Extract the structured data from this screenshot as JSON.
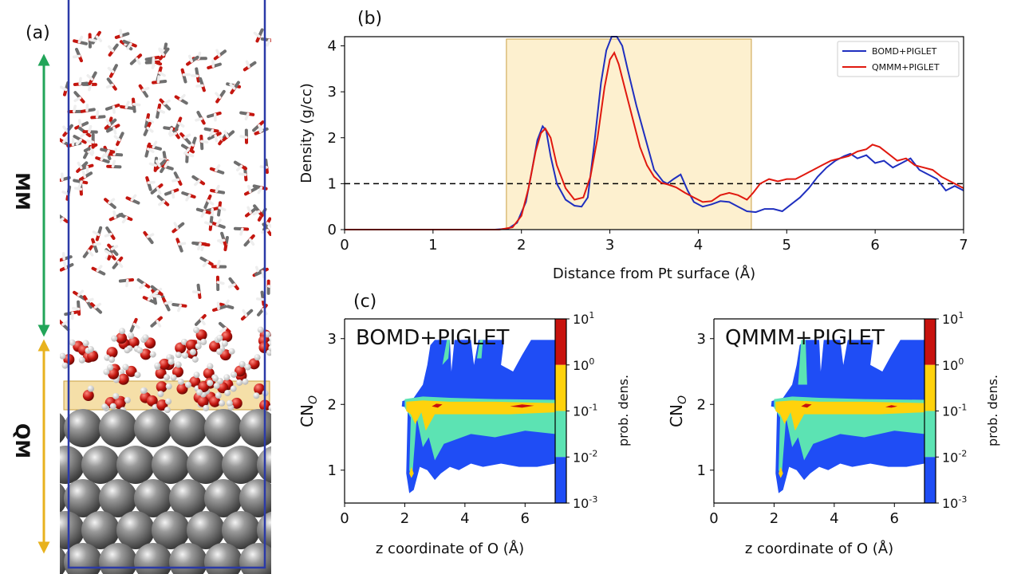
{
  "panels": {
    "a": "(a)",
    "b": "(b)",
    "c": "(c)"
  },
  "simulation": {
    "mm_label": "MM",
    "qm_label": "QM",
    "colors": {
      "mm_arrow": "#22a559",
      "qm_arrow": "#e8b21e",
      "box": "#2b3aa8",
      "highlight": "#f5dfa8",
      "oxygen": "#c4160f",
      "hydrogen": "#eeeeee",
      "carbon_gray": "#6f6f6f",
      "platinum": "#8a8a8a"
    }
  },
  "chart_data": [
    {
      "id": "b",
      "type": "line",
      "xlabel": "Distance from Pt surface (Å)",
      "ylabel": "Density (g/cc)",
      "xlim": [
        0,
        7
      ],
      "ylim": [
        0,
        4.2
      ],
      "xticks": [
        "0",
        "1",
        "2",
        "3",
        "4",
        "5",
        "6",
        "7"
      ],
      "yticks": [
        "0",
        "1",
        "2",
        "3",
        "4"
      ],
      "reference_line": {
        "y": 1.0,
        "style": "dashed"
      },
      "highlight_region": {
        "x": [
          1.83,
          4.6
        ],
        "color": "#fdf0cf"
      },
      "legend": {
        "placement": "top-right"
      },
      "series": [
        {
          "name": "BOMD+PIGLET",
          "color": "#1f2fbf",
          "x": [
            0,
            1.7,
            1.85,
            1.95,
            2.05,
            2.12,
            2.18,
            2.24,
            2.28,
            2.33,
            2.4,
            2.5,
            2.6,
            2.68,
            2.75,
            2.82,
            2.9,
            2.96,
            3.02,
            3.08,
            3.14,
            3.2,
            3.3,
            3.4,
            3.5,
            3.6,
            3.65,
            3.72,
            3.8,
            3.88,
            3.95,
            4.05,
            4.15,
            4.25,
            4.35,
            4.45,
            4.55,
            4.65,
            4.75,
            4.85,
            4.95,
            5.05,
            5.15,
            5.25,
            5.35,
            5.45,
            5.55,
            5.65,
            5.72,
            5.8,
            5.9,
            6.0,
            6.1,
            6.2,
            6.3,
            6.4,
            6.5,
            6.6,
            6.7,
            6.8,
            6.9,
            7.0
          ],
          "y": [
            0,
            0,
            0.02,
            0.15,
            0.6,
            1.3,
            1.95,
            2.25,
            2.15,
            1.6,
            1.0,
            0.65,
            0.52,
            0.5,
            0.7,
            1.8,
            3.2,
            3.9,
            4.2,
            4.2,
            4.0,
            3.5,
            2.7,
            2.0,
            1.3,
            1.05,
            1.0,
            1.1,
            1.2,
            0.85,
            0.6,
            0.5,
            0.55,
            0.62,
            0.6,
            0.5,
            0.4,
            0.38,
            0.45,
            0.45,
            0.4,
            0.55,
            0.7,
            0.9,
            1.15,
            1.35,
            1.5,
            1.6,
            1.65,
            1.55,
            1.62,
            1.45,
            1.5,
            1.35,
            1.45,
            1.55,
            1.3,
            1.2,
            1.1,
            0.85,
            0.95,
            0.85
          ]
        },
        {
          "name": "QMMM+PIGLET",
          "color": "#e0190f",
          "x": [
            0,
            1.75,
            1.9,
            2.0,
            2.08,
            2.16,
            2.22,
            2.27,
            2.33,
            2.4,
            2.5,
            2.6,
            2.7,
            2.78,
            2.86,
            2.94,
            3.0,
            3.05,
            3.1,
            3.18,
            3.26,
            3.34,
            3.42,
            3.5,
            3.58,
            3.66,
            3.75,
            3.85,
            3.95,
            4.05,
            4.15,
            4.25,
            4.35,
            4.45,
            4.55,
            4.62,
            4.7,
            4.8,
            4.9,
            5.0,
            5.1,
            5.2,
            5.3,
            5.4,
            5.5,
            5.6,
            5.7,
            5.8,
            5.9,
            5.97,
            6.05,
            6.15,
            6.25,
            6.35,
            6.45,
            6.55,
            6.65,
            6.75,
            6.85,
            6.95,
            7.0
          ],
          "y": [
            0,
            0,
            0.05,
            0.3,
            0.9,
            1.7,
            2.1,
            2.2,
            2.0,
            1.4,
            0.9,
            0.65,
            0.7,
            1.15,
            2.0,
            3.1,
            3.7,
            3.85,
            3.6,
            3.0,
            2.4,
            1.8,
            1.4,
            1.15,
            1.02,
            0.98,
            0.92,
            0.8,
            0.7,
            0.6,
            0.62,
            0.75,
            0.8,
            0.75,
            0.65,
            0.8,
            1.0,
            1.1,
            1.05,
            1.1,
            1.1,
            1.2,
            1.3,
            1.4,
            1.5,
            1.55,
            1.6,
            1.7,
            1.75,
            1.85,
            1.8,
            1.65,
            1.5,
            1.55,
            1.4,
            1.35,
            1.3,
            1.15,
            1.05,
            0.95,
            0.9
          ]
        }
      ]
    },
    {
      "id": "c-left",
      "type": "heatmap",
      "title": "BOMD+PIGLET",
      "xlabel": "z coordinate of O (Å)",
      "ylabel": "CN",
      "ylabel_sub": "O",
      "xlim": [
        0,
        7
      ],
      "ylim": [
        0.5,
        3.3
      ],
      "xticks": [
        "0",
        "2",
        "4",
        "6"
      ],
      "yticks": [
        "1",
        "2",
        "3"
      ],
      "colorbar": {
        "label": "prob. dens.",
        "scale": "log",
        "base": "10",
        "exponents": [
          "1",
          "0",
          "-1",
          "-2",
          "-3"
        ],
        "levels": [
          {
            "color": "#c8120e"
          },
          {
            "color": "#ffd20c"
          },
          {
            "color": "#5ce3b3"
          },
          {
            "color": "#1f4df5"
          }
        ]
      }
    },
    {
      "id": "c-right",
      "type": "heatmap",
      "title": "QMMM+PIGLET",
      "xlabel": "z coordinate of O (Å)",
      "ylabel": "CN",
      "ylabel_sub": "O",
      "xlim": [
        0,
        7
      ],
      "ylim": [
        0.5,
        3.3
      ],
      "xticks": [
        "0",
        "2",
        "4",
        "6"
      ],
      "yticks": [
        "1",
        "2",
        "3"
      ],
      "colorbar": {
        "label": "prob. dens.",
        "scale": "log",
        "base": "10",
        "exponents": [
          "1",
          "0",
          "-1",
          "-2",
          "-3"
        ],
        "levels": [
          {
            "color": "#c8120e"
          },
          {
            "color": "#ffd20c"
          },
          {
            "color": "#5ce3b3"
          },
          {
            "color": "#1f4df5"
          }
        ]
      }
    }
  ]
}
